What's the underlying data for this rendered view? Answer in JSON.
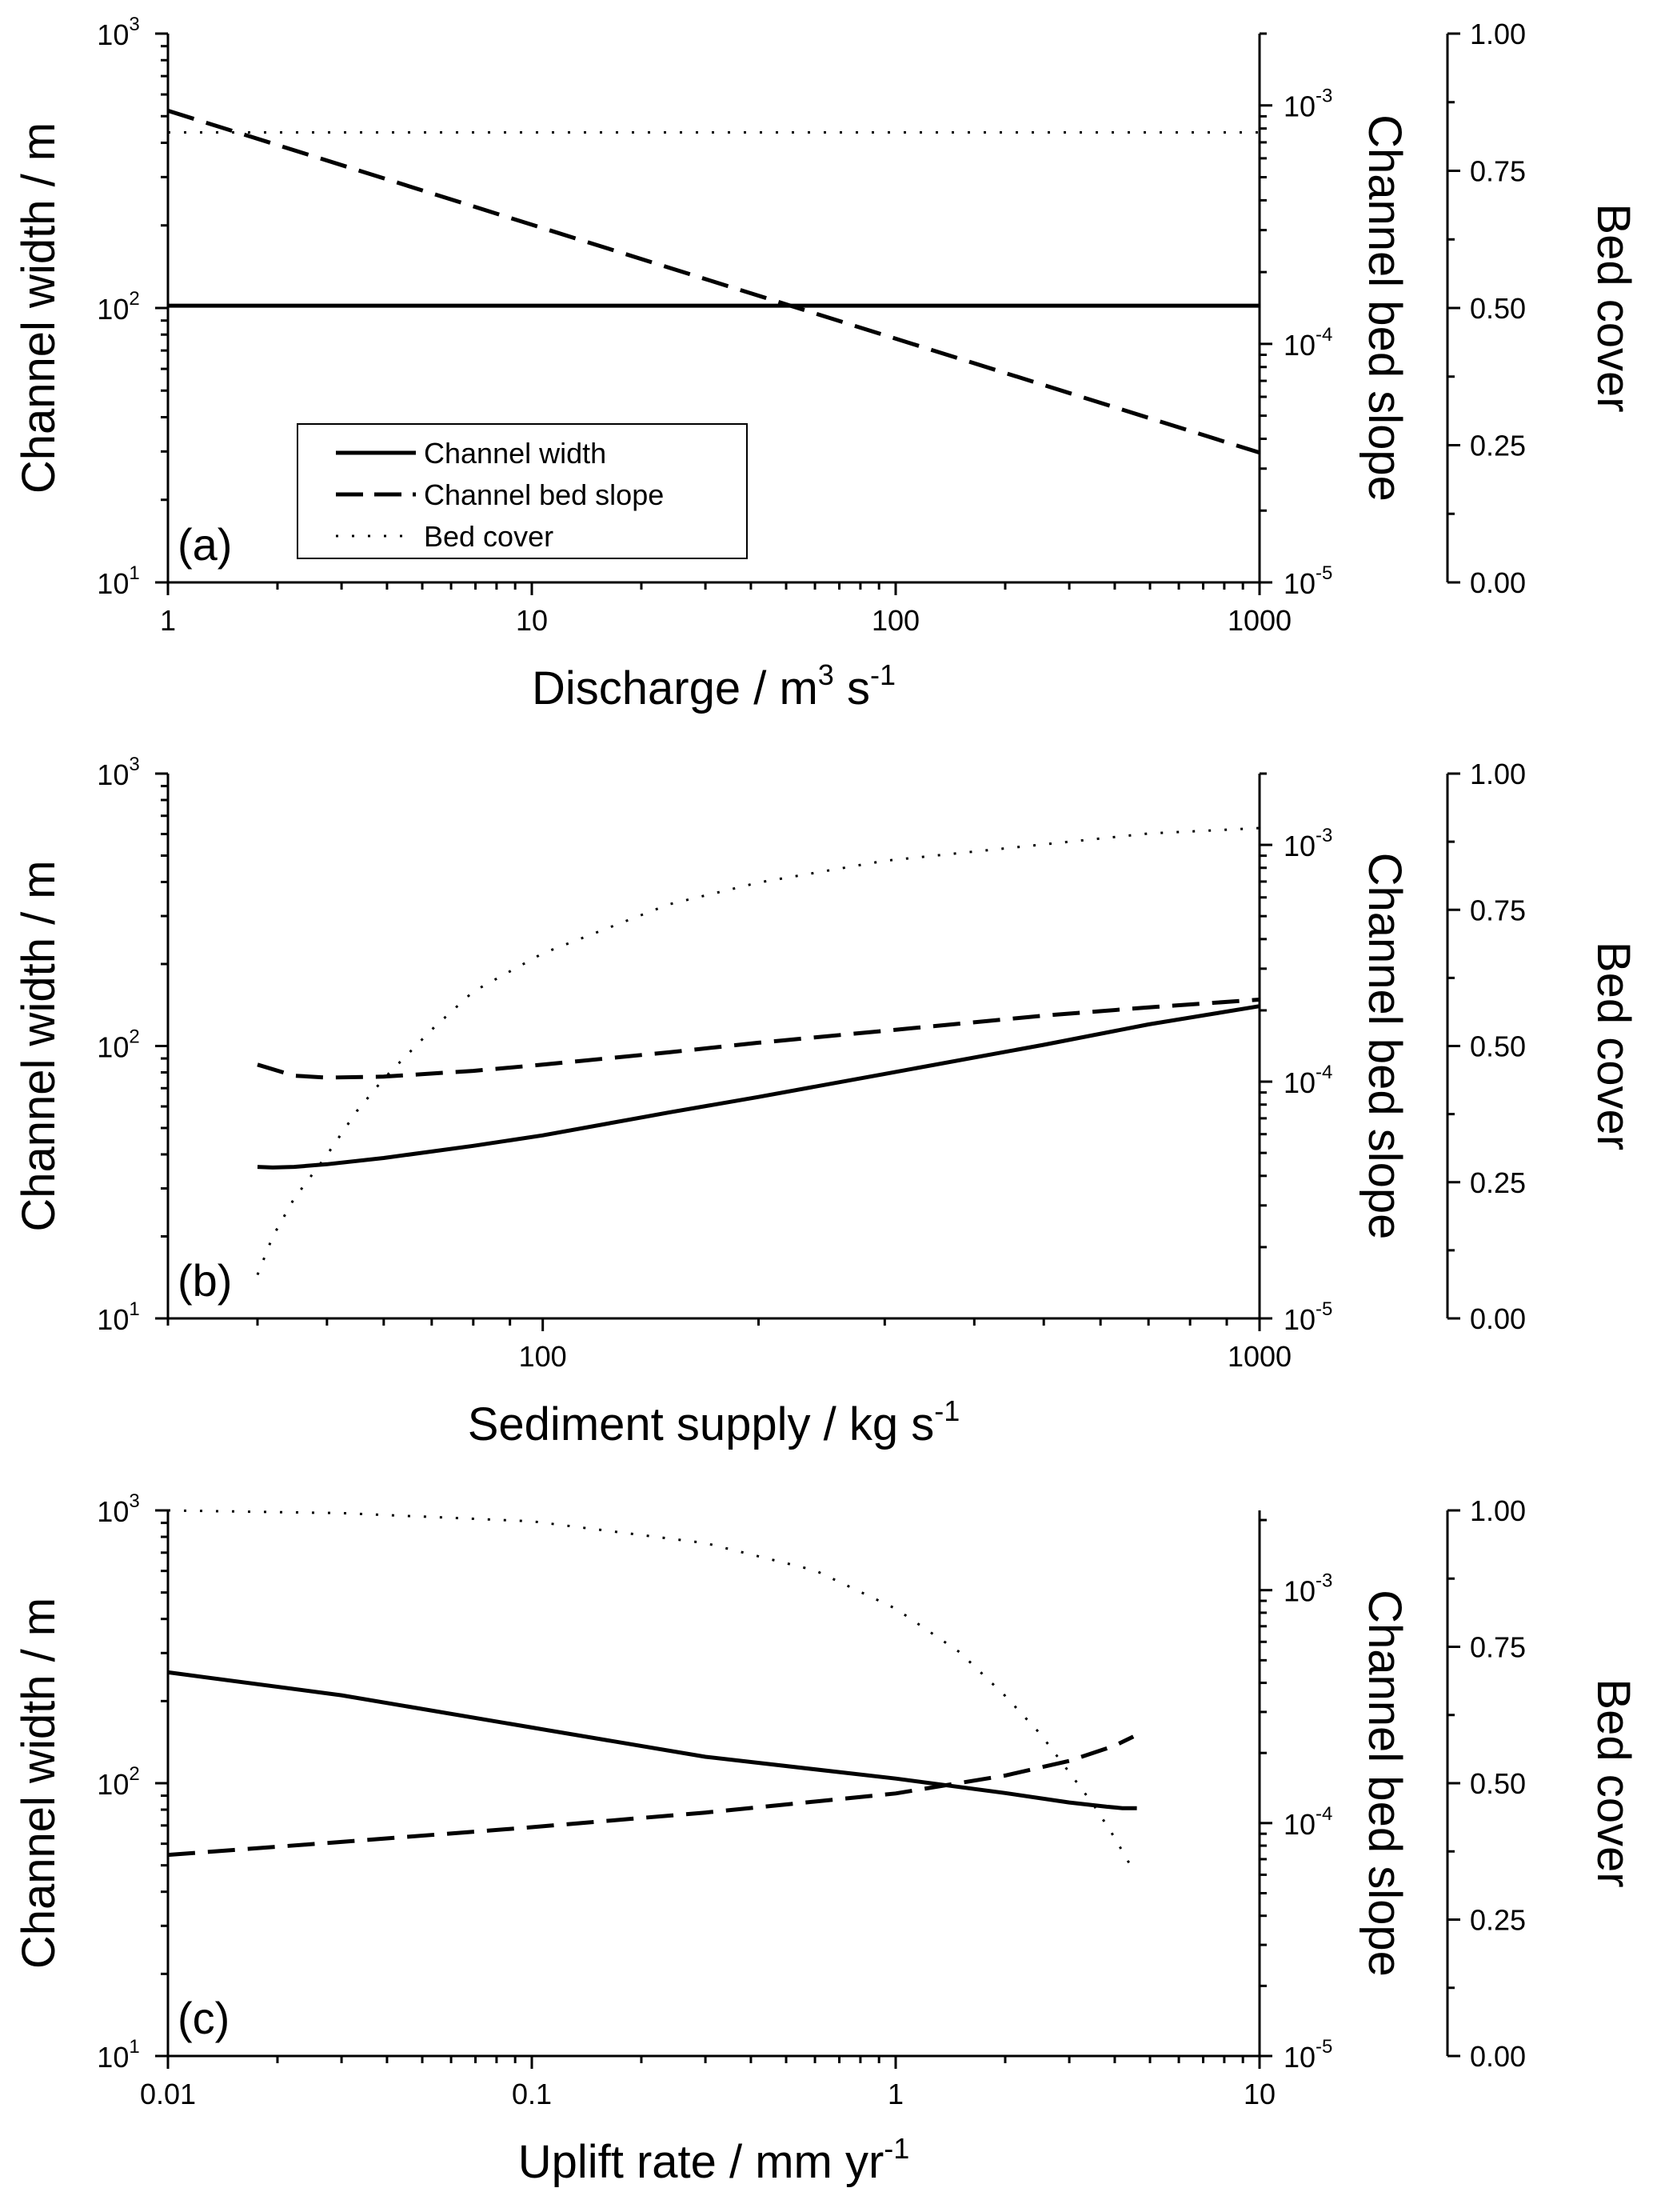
{
  "chart_data": [
    {
      "type": "line",
      "panel_label": "(a)",
      "xlabel": "Discharge / m3 s-1",
      "xlabel_parts": {
        "base": "Discharge / m",
        "sup1": "3",
        "mid": " s",
        "sup2": "-1"
      },
      "ylabel_left": "Channel width / m",
      "ylabel_middle": "Channel bed slope",
      "ylabel_right": "Bed cover",
      "x_scale": "log",
      "xlim": [
        1,
        1000
      ],
      "x_ticks": [
        "1",
        "10",
        "100",
        "1000"
      ],
      "x_tick_values": [
        1,
        10,
        100,
        1000
      ],
      "y_left_scale": "log",
      "y_left_lim": [
        10,
        1000
      ],
      "y_left_tick_values": [
        10,
        100,
        1000
      ],
      "y_left_ticks": [
        {
          "base": "10",
          "exp": "1"
        },
        {
          "base": "10",
          "exp": "2"
        },
        {
          "base": "10",
          "exp": "3"
        }
      ],
      "y_mid_scale": "log",
      "y_mid_lim": [
        1e-05,
        0.002
      ],
      "y_mid_tick_values": [
        1e-05,
        0.0001,
        0.001
      ],
      "y_mid_ticks": [
        {
          "base": "10",
          "exp": "-5"
        },
        {
          "base": "10",
          "exp": "-4"
        },
        {
          "base": "10",
          "exp": "-3"
        }
      ],
      "y_right_scale": "linear",
      "y_right_lim": [
        0,
        1
      ],
      "y_right_ticks": [
        "0.00",
        "0.25",
        "0.50",
        "0.75",
        "1.00"
      ],
      "y_right_tick_values": [
        0,
        0.25,
        0.5,
        0.75,
        1
      ],
      "legend": {
        "position": "lower-left",
        "entries": [
          "Channel width",
          "Channel bed slope",
          "Bed cover"
        ]
      },
      "series": [
        {
          "name": "Channel width",
          "axis": "left",
          "style": "solid",
          "x": [
            1,
            1000
          ],
          "y": [
            102,
            102
          ]
        },
        {
          "name": "Channel bed slope",
          "axis": "middle",
          "style": "dashed",
          "x": [
            1,
            1000
          ],
          "y": [
            0.00095,
            3.5e-05
          ]
        },
        {
          "name": "Bed cover",
          "axis": "right",
          "style": "dotted",
          "x": [
            1,
            1000
          ],
          "y": [
            0.82,
            0.82
          ]
        }
      ]
    },
    {
      "type": "line",
      "panel_label": "(b)",
      "xlabel": "Sediment supply / kg s-1",
      "xlabel_parts": {
        "base": "Sediment supply / kg s",
        "sup1": "-1",
        "mid": "",
        "sup2": ""
      },
      "ylabel_left": "Channel width / m",
      "ylabel_middle": "Channel bed slope",
      "ylabel_right": "Bed cover",
      "x_scale": "log",
      "xlim": [
        30,
        1000
      ],
      "x_ticks": [
        "100",
        "1000"
      ],
      "x_tick_values": [
        100,
        1000
      ],
      "y_left_scale": "log",
      "y_left_lim": [
        10,
        1000
      ],
      "y_left_tick_values": [
        10,
        100,
        1000
      ],
      "y_left_ticks": [
        {
          "base": "10",
          "exp": "1"
        },
        {
          "base": "10",
          "exp": "2"
        },
        {
          "base": "10",
          "exp": "3"
        }
      ],
      "y_mid_scale": "log",
      "y_mid_lim": [
        1e-05,
        0.002
      ],
      "y_mid_tick_values": [
        1e-05,
        0.0001,
        0.001
      ],
      "y_mid_ticks": [
        {
          "base": "10",
          "exp": "-5"
        },
        {
          "base": "10",
          "exp": "-4"
        },
        {
          "base": "10",
          "exp": "-3"
        }
      ],
      "y_right_scale": "linear",
      "y_right_lim": [
        0,
        1
      ],
      "y_right_ticks": [
        "0.00",
        "0.25",
        "0.50",
        "0.75",
        "1.00"
      ],
      "y_right_tick_values": [
        0,
        0.25,
        0.5,
        0.75,
        1
      ],
      "series": [
        {
          "name": "Channel width",
          "axis": "left",
          "style": "solid",
          "x": [
            40,
            42,
            45,
            50,
            60,
            80,
            100,
            150,
            200,
            300,
            500,
            700,
            1000
          ],
          "y": [
            36,
            35.8,
            36,
            36.8,
            38.8,
            43,
            47,
            57,
            65,
            79,
            101,
            120,
            140
          ]
        },
        {
          "name": "Channel bed slope",
          "axis": "middle",
          "style": "dashed",
          "x": [
            40,
            45,
            50,
            60,
            80,
            100,
            150,
            200,
            300,
            500,
            700,
            1000
          ],
          "y": [
            0.000118,
            0.000106,
            0.000104,
            0.000105,
            0.000111,
            0.000118,
            0.000133,
            0.000146,
            0.000164,
            0.00019,
            0.000206,
            0.000222
          ]
        },
        {
          "name": "Bed cover",
          "axis": "right",
          "style": "dotted",
          "x": [
            40,
            42,
            45,
            50,
            55,
            60,
            70,
            80,
            100,
            150,
            200,
            300,
            500,
            700,
            1000
          ],
          "y": [
            0.08,
            0.15,
            0.22,
            0.3,
            0.38,
            0.44,
            0.53,
            0.6,
            0.67,
            0.76,
            0.8,
            0.84,
            0.87,
            0.89,
            0.9
          ]
        }
      ]
    },
    {
      "type": "line",
      "panel_label": "(c)",
      "xlabel": "Uplift rate / mm yr-1",
      "xlabel_parts": {
        "base": "Uplift rate / mm yr",
        "sup1": "-1",
        "mid": "",
        "sup2": ""
      },
      "ylabel_left": "Channel width / m",
      "ylabel_middle": "Channel bed slope",
      "ylabel_right": "Bed cover",
      "x_scale": "log",
      "xlim": [
        0.01,
        10
      ],
      "x_ticks": [
        "0.01",
        "0.1",
        "1",
        "10"
      ],
      "x_tick_values": [
        0.01,
        0.1,
        1,
        10
      ],
      "y_left_scale": "log",
      "y_left_lim": [
        10,
        1000
      ],
      "y_left_tick_values": [
        10,
        100,
        1000
      ],
      "y_left_ticks": [
        {
          "base": "10",
          "exp": "1"
        },
        {
          "base": "10",
          "exp": "2"
        },
        {
          "base": "10",
          "exp": "3"
        }
      ],
      "y_mid_scale": "log",
      "y_mid_lim": [
        1e-05,
        0.0022
      ],
      "y_mid_tick_values": [
        1e-05,
        0.0001,
        0.001
      ],
      "y_mid_ticks": [
        {
          "base": "10",
          "exp": "-5"
        },
        {
          "base": "10",
          "exp": "-4"
        },
        {
          "base": "10",
          "exp": "-3"
        }
      ],
      "y_right_scale": "linear",
      "y_right_lim": [
        0,
        1
      ],
      "y_right_ticks": [
        "0.00",
        "0.25",
        "0.50",
        "0.75",
        "1.00"
      ],
      "y_right_tick_values": [
        0,
        0.25,
        0.5,
        0.75,
        1
      ],
      "series": [
        {
          "name": "Channel width",
          "axis": "left",
          "style": "solid",
          "x": [
            0.01,
            0.03,
            0.1,
            0.3,
            1,
            2,
            3,
            3.8,
            4.2,
            4.6
          ],
          "y": [
            255,
            210,
            160,
            125,
            104,
            92,
            85,
            82,
            81,
            81
          ]
        },
        {
          "name": "Channel bed slope",
          "axis": "middle",
          "style": "dashed",
          "x": [
            0.01,
            0.03,
            0.1,
            0.3,
            1,
            2,
            3,
            4,
            4.5
          ],
          "y": [
            7.3e-05,
            8.3e-05,
            9.6e-05,
            0.000111,
            0.000134,
            0.00016,
            0.000185,
            0.000215,
            0.000235
          ]
        },
        {
          "name": "Bed cover",
          "axis": "right",
          "style": "dotted",
          "x": [
            0.01,
            0.03,
            0.1,
            0.3,
            0.6,
            1,
            1.5,
            2,
            2.5,
            3,
            3.5,
            4,
            4.5
          ],
          "y": [
            1.0,
            0.995,
            0.98,
            0.94,
            0.89,
            0.82,
            0.74,
            0.66,
            0.59,
            0.52,
            0.46,
            0.4,
            0.34
          ]
        }
      ]
    }
  ]
}
